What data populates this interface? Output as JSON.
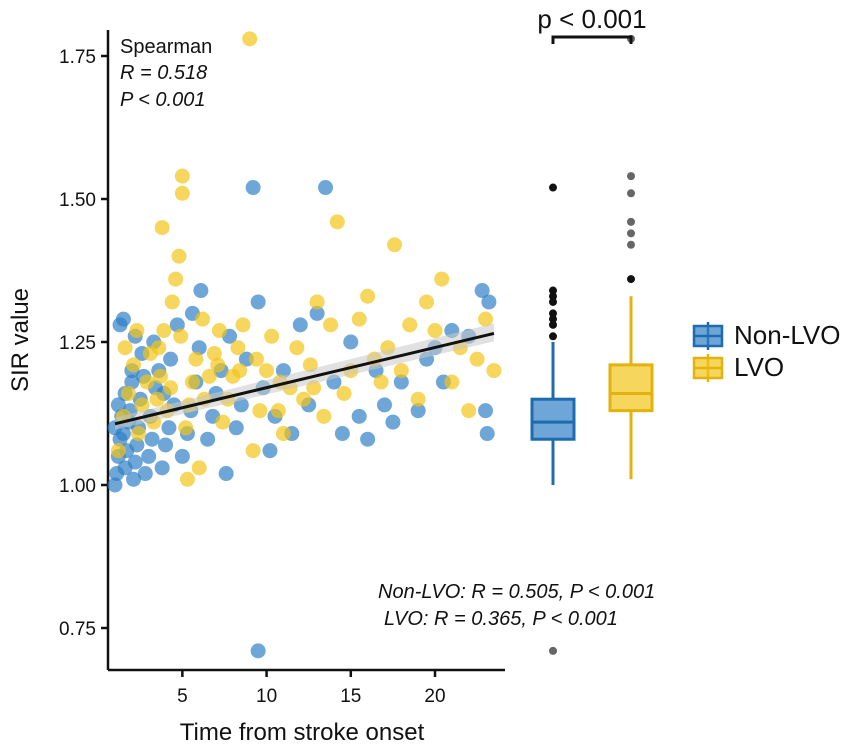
{
  "colors": {
    "nonlvo": "#2f80c6",
    "lvo": "#f2c417",
    "nonlvo_stroke": "#1f6bb0",
    "lvo_stroke": "#e3b20d",
    "fit": "#111111",
    "band": "#c8c8c8"
  },
  "chart_data": {
    "type": "scatter",
    "xlabel": "Time from stroke onset",
    "ylabel": "SIR value",
    "xlim": [
      0,
      25
    ],
    "ylim": [
      0.68,
      1.83
    ],
    "xticks": [
      5,
      10,
      15,
      20
    ],
    "yticks": [
      0.75,
      1.0,
      1.25,
      1.5,
      1.75
    ],
    "xtick_labels": [
      "5",
      "10",
      "15",
      "20"
    ],
    "ytick_labels": [
      "0.75",
      "1.00",
      "1.25",
      "1.50",
      "1.75"
    ],
    "fit_line": {
      "x": [
        1,
        23.5
      ],
      "y": [
        1.107,
        1.265
      ]
    },
    "series": [
      {
        "name": "Non-LVO",
        "points": [
          [
            1.0,
            1.0
          ],
          [
            1.1,
            1.02
          ],
          [
            1.2,
            1.05
          ],
          [
            1.3,
            1.08
          ],
          [
            1.0,
            1.1
          ],
          [
            1.4,
            1.12
          ],
          [
            1.2,
            1.14
          ],
          [
            1.6,
            1.03
          ],
          [
            1.7,
            1.06
          ],
          [
            1.5,
            1.09
          ],
          [
            1.8,
            1.11
          ],
          [
            1.9,
            1.13
          ],
          [
            1.6,
            1.16
          ],
          [
            2.0,
            1.18
          ],
          [
            2.1,
            1.01
          ],
          [
            2.2,
            1.04
          ],
          [
            2.3,
            1.07
          ],
          [
            2.0,
            1.2
          ],
          [
            2.4,
            1.1
          ],
          [
            2.5,
            1.15
          ],
          [
            2.6,
            1.23
          ],
          [
            2.2,
            1.26
          ],
          [
            1.5,
            1.29
          ],
          [
            2.8,
            1.02
          ],
          [
            3.0,
            1.05
          ],
          [
            3.2,
            1.08
          ],
          [
            3.1,
            1.12
          ],
          [
            3.4,
            1.17
          ],
          [
            3.6,
            1.2
          ],
          [
            3.3,
            1.25
          ],
          [
            3.8,
            1.03
          ],
          [
            4.0,
            1.07
          ],
          [
            4.2,
            1.1
          ],
          [
            4.5,
            1.14
          ],
          [
            4.3,
            1.22
          ],
          [
            4.7,
            1.28
          ],
          [
            5.0,
            1.05
          ],
          [
            5.3,
            1.09
          ],
          [
            5.5,
            1.13
          ],
          [
            5.8,
            1.18
          ],
          [
            6.1,
            1.34
          ],
          [
            6.0,
            1.24
          ],
          [
            6.5,
            1.08
          ],
          [
            6.8,
            1.12
          ],
          [
            7.0,
            1.16
          ],
          [
            7.3,
            1.2
          ],
          [
            7.6,
            1.02
          ],
          [
            7.8,
            1.26
          ],
          [
            8.2,
            1.1
          ],
          [
            8.5,
            1.14
          ],
          [
            9.2,
            1.52
          ],
          [
            9.5,
            1.32
          ],
          [
            9.8,
            1.17
          ],
          [
            10.2,
            1.06
          ],
          [
            10.5,
            1.12
          ],
          [
            11.0,
            1.2
          ],
          [
            11.5,
            1.09
          ],
          [
            12.0,
            1.28
          ],
          [
            12.5,
            1.14
          ],
          [
            13.0,
            1.3
          ],
          [
            13.5,
            1.52
          ],
          [
            14.0,
            1.18
          ],
          [
            14.5,
            1.09
          ],
          [
            15.0,
            1.25
          ],
          [
            15.5,
            1.12
          ],
          [
            16.0,
            1.08
          ],
          [
            16.5,
            1.2
          ],
          [
            17.0,
            1.14
          ],
          [
            17.5,
            1.11
          ],
          [
            18.0,
            1.18
          ],
          [
            19.0,
            1.13
          ],
          [
            19.5,
            1.22
          ],
          [
            20.0,
            1.24
          ],
          [
            20.5,
            1.18
          ],
          [
            21.0,
            1.27
          ],
          [
            22.0,
            1.26
          ],
          [
            22.8,
            1.34
          ],
          [
            23.2,
            1.32
          ],
          [
            23.0,
            1.13
          ],
          [
            23.1,
            1.09
          ],
          [
            9.5,
            0.71
          ],
          [
            1.3,
            1.28
          ],
          [
            2.7,
            1.19
          ],
          [
            3.9,
            1.16
          ],
          [
            5.6,
            1.3
          ],
          [
            8.8,
            1.22
          ]
        ]
      },
      {
        "name": "LVO",
        "points": [
          [
            1.2,
            1.06
          ],
          [
            1.5,
            1.12
          ],
          [
            1.8,
            1.16
          ],
          [
            2.1,
            1.21
          ],
          [
            2.4,
            1.09
          ],
          [
            2.6,
            1.14
          ],
          [
            2.9,
            1.18
          ],
          [
            3.1,
            1.23
          ],
          [
            3.3,
            1.11
          ],
          [
            3.5,
            1.15
          ],
          [
            3.7,
            1.19
          ],
          [
            3.9,
            1.27
          ],
          [
            4.1,
            1.13
          ],
          [
            4.3,
            1.17
          ],
          [
            4.4,
            1.32
          ],
          [
            4.6,
            1.36
          ],
          [
            4.8,
            1.4
          ],
          [
            5.0,
            1.54
          ],
          [
            5.0,
            1.51
          ],
          [
            3.8,
            1.45
          ],
          [
            5.2,
            1.1
          ],
          [
            5.4,
            1.14
          ],
          [
            5.6,
            1.18
          ],
          [
            5.8,
            1.22
          ],
          [
            6.0,
            1.03
          ],
          [
            5.3,
            1.01
          ],
          [
            6.3,
            1.15
          ],
          [
            6.6,
            1.19
          ],
          [
            6.9,
            1.23
          ],
          [
            7.2,
            1.27
          ],
          [
            7.4,
            1.11
          ],
          [
            7.7,
            1.15
          ],
          [
            8.0,
            1.19
          ],
          [
            8.3,
            1.24
          ],
          [
            8.6,
            1.28
          ],
          [
            9.0,
            1.78
          ],
          [
            9.2,
            1.06
          ],
          [
            9.6,
            1.13
          ],
          [
            10.0,
            1.2
          ],
          [
            10.3,
            1.26
          ],
          [
            10.7,
            1.13
          ],
          [
            11.0,
            1.09
          ],
          [
            11.4,
            1.17
          ],
          [
            11.8,
            1.24
          ],
          [
            12.2,
            1.15
          ],
          [
            12.6,
            1.21
          ],
          [
            13.0,
            1.32
          ],
          [
            13.4,
            1.12
          ],
          [
            13.8,
            1.28
          ],
          [
            14.2,
            1.46
          ],
          [
            14.6,
            1.16
          ],
          [
            15.0,
            1.2
          ],
          [
            15.5,
            1.29
          ],
          [
            16.0,
            1.33
          ],
          [
            16.4,
            1.22
          ],
          [
            16.8,
            1.18
          ],
          [
            17.2,
            1.24
          ],
          [
            17.6,
            1.42
          ],
          [
            18.0,
            1.2
          ],
          [
            18.5,
            1.28
          ],
          [
            19.0,
            1.15
          ],
          [
            19.5,
            1.32
          ],
          [
            20.0,
            1.27
          ],
          [
            20.4,
            1.36
          ],
          [
            21.0,
            1.18
          ],
          [
            21.5,
            1.24
          ],
          [
            22.0,
            1.13
          ],
          [
            22.5,
            1.22
          ],
          [
            23.0,
            1.29
          ],
          [
            23.5,
            1.2
          ],
          [
            1.6,
            1.24
          ],
          [
            2.3,
            1.27
          ],
          [
            3.6,
            1.24
          ],
          [
            4.9,
            1.26
          ],
          [
            6.2,
            1.29
          ],
          [
            7.1,
            1.21
          ],
          [
            8.4,
            1.2
          ],
          [
            9.4,
            1.22
          ],
          [
            10.8,
            1.18
          ],
          [
            12.8,
            1.17
          ]
        ]
      }
    ],
    "boxplots": [
      {
        "name": "Non-LVO",
        "min": 1.0,
        "q1": 1.08,
        "median": 1.11,
        "q3": 1.15,
        "max": 1.25,
        "outliers": [
          1.26,
          1.28,
          1.29,
          1.3,
          1.32,
          1.33,
          1.34,
          1.52,
          0.71
        ]
      },
      {
        "name": "LVO",
        "min": 1.01,
        "q1": 1.13,
        "median": 1.16,
        "q3": 1.21,
        "max": 1.33,
        "outliers": [
          1.36,
          1.42,
          1.44,
          1.46,
          1.51,
          1.54,
          1.78
        ]
      }
    ],
    "legend": [
      "Non-LVO",
      "LVO"
    ]
  },
  "annotations": {
    "spearman_title": "Spearman",
    "spearman_r": "R = 0.518",
    "spearman_p": "P < 0.001",
    "nonlvo_stat": "Non-LVO: R = 0.505, P < 0.001",
    "lvo_stat": "LVO: R = 0.365, P < 0.001",
    "comparison_p": "p < 0.001"
  }
}
